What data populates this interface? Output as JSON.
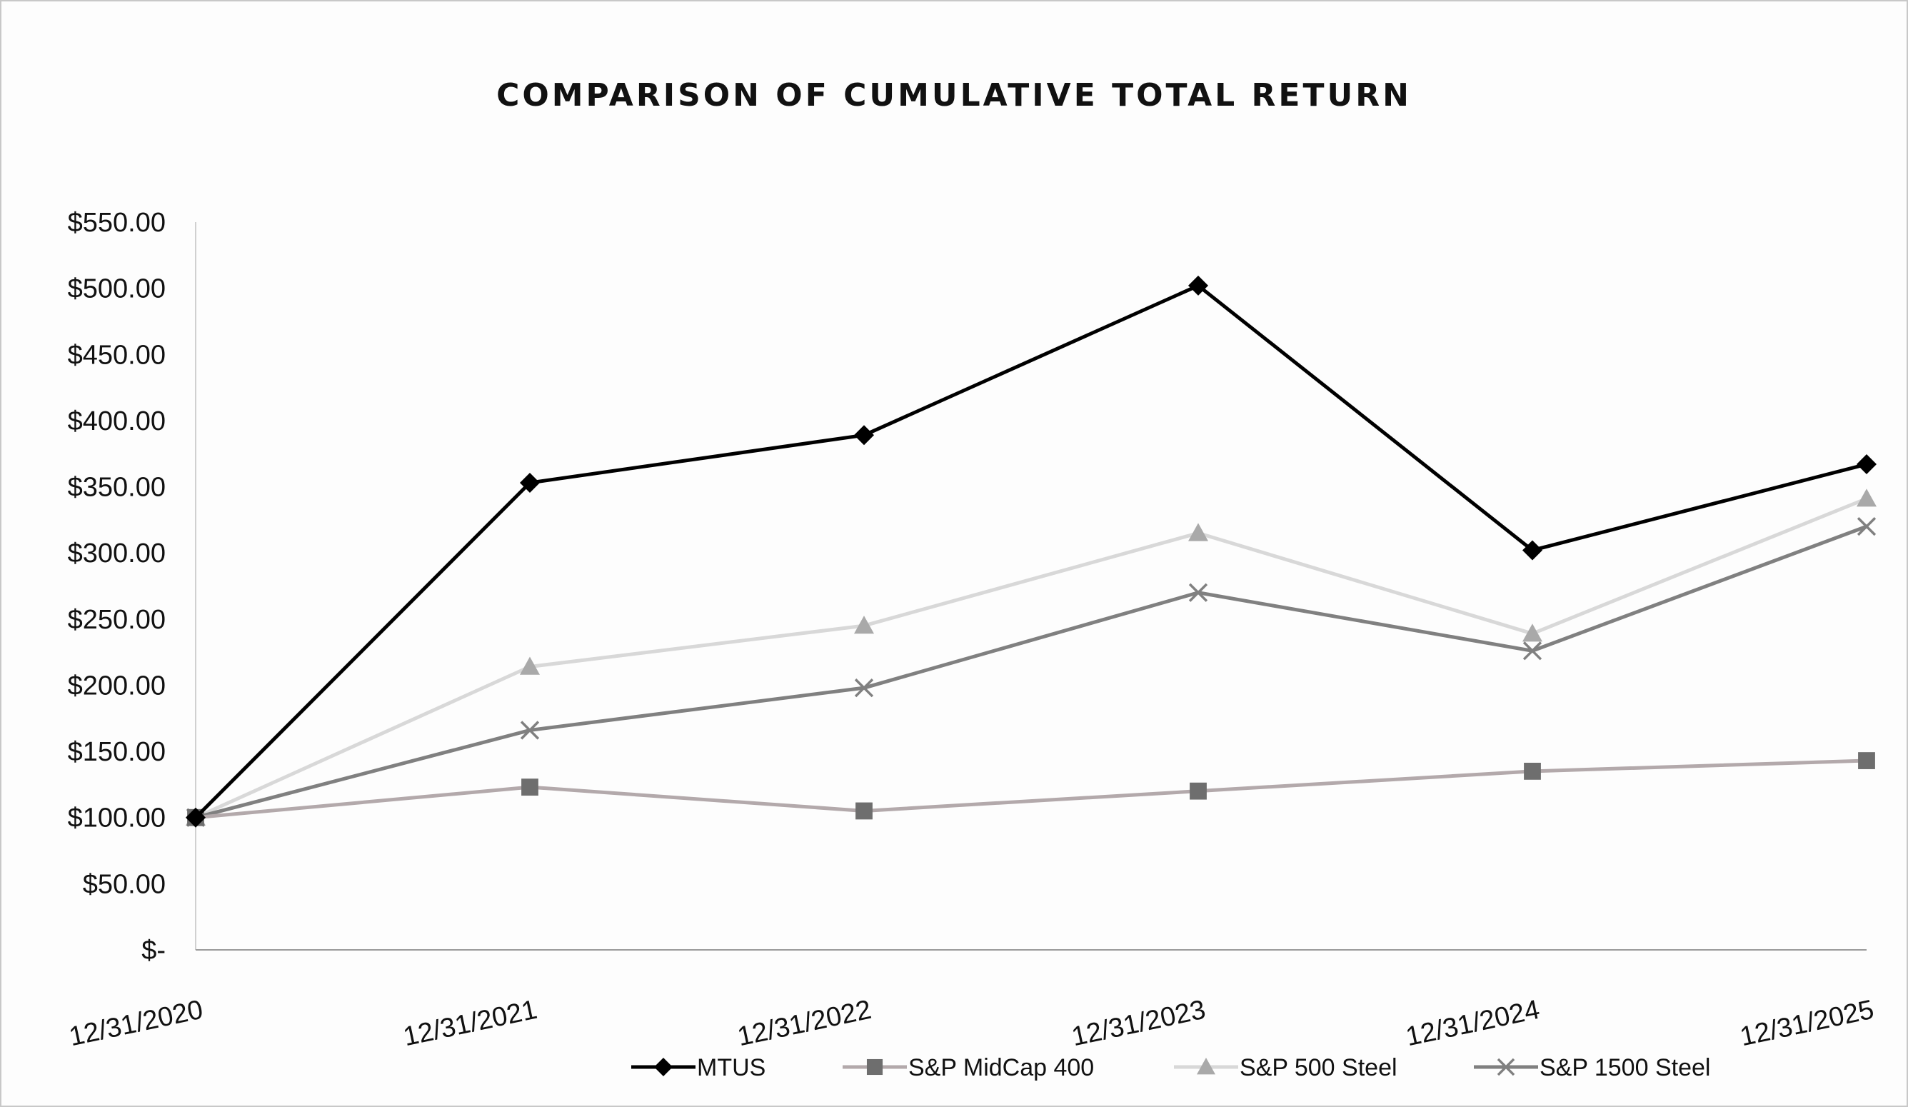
{
  "chart_data": {
    "type": "line",
    "title": "COMPARISON OF CUMULATIVE TOTAL RETURN",
    "xlabel": "",
    "ylabel": "",
    "categories": [
      "12/31/2020",
      "12/31/2021",
      "12/31/2022",
      "12/31/2023",
      "12/31/2024",
      "12/31/2025"
    ],
    "ylim": [
      0,
      550
    ],
    "yticks": [
      0,
      50,
      100,
      150,
      200,
      250,
      300,
      350,
      400,
      450,
      500,
      550
    ],
    "ytick_labels": [
      "$-",
      "$50.00",
      "$100.00",
      "$150.00",
      "$200.00",
      "$250.00",
      "$300.00",
      "$350.00",
      "$400.00",
      "$450.00",
      "$500.00",
      "$550.00"
    ],
    "grid": false,
    "legend_position": "bottom",
    "series": [
      {
        "name": "MTUS",
        "values": [
          100,
          353,
          389,
          502,
          302,
          367
        ],
        "color": "#000000",
        "marker": "diamond"
      },
      {
        "name": "S&P MidCap 400",
        "values": [
          100,
          123,
          105,
          120,
          135,
          143
        ],
        "color": "#b3a9ab",
        "marker_color": "#6e6e6e",
        "marker": "square"
      },
      {
        "name": "S&P 500 Steel",
        "values": [
          100,
          214,
          245,
          315,
          239,
          341
        ],
        "color": "#d8d8d8",
        "marker_color": "#a9a9a9",
        "marker": "triangle"
      },
      {
        "name": "S&P 1500 Steel",
        "values": [
          100,
          166,
          198,
          270,
          226,
          320
        ],
        "color": "#808080",
        "marker_color": "#808080",
        "marker": "x"
      }
    ]
  }
}
